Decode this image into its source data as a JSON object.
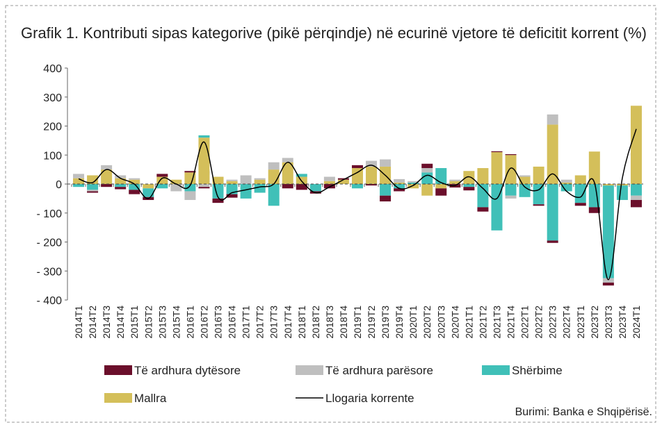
{
  "chart_data": {
    "type": "bar",
    "title": "Grafik 1. Kontributi sipas kategorive (pikë përqindje) në ecurinë vjetore të deficitit korrent (%)",
    "source": "Burimi: Banka e Shqipërisë.",
    "categories": [
      "2014T1",
      "2014T2",
      "2014T3",
      "2014T4",
      "2015T1",
      "2015T2",
      "2015T3",
      "2015T4",
      "2016T1",
      "2016T2",
      "2016T3",
      "2016T4",
      "2017T1",
      "2017T2",
      "2017T3",
      "2017T4",
      "2018T1",
      "2018T2",
      "2018T3",
      "2018T4",
      "2019T1",
      "2019T2",
      "2019T3",
      "2019T4",
      "2020T1",
      "2020T2",
      "2020T3",
      "2020T4",
      "2021T1",
      "2021T2",
      "2021T3",
      "2021T4",
      "2022T1",
      "2022T2",
      "2022T3",
      "2022T4",
      "2023T1",
      "2023T2",
      "2023T3",
      "2023T4",
      "2024T1"
    ],
    "series": [
      {
        "name": "Të ardhura dytësore",
        "color": "#6b0f2b",
        "values": [
          0,
          -5,
          -10,
          -8,
          -15,
          -10,
          10,
          0,
          5,
          -5,
          -15,
          -12,
          0,
          0,
          0,
          -15,
          -20,
          -8,
          -15,
          5,
          10,
          -5,
          -20,
          -10,
          0,
          15,
          -25,
          -12,
          -12,
          -15,
          3,
          3,
          0,
          -5,
          -8,
          0,
          -10,
          -20,
          -10,
          0,
          -25
        ]
      },
      {
        "name": "Të ardhura parësore",
        "color": "#bfbfbf",
        "values": [
          15,
          -5,
          15,
          10,
          5,
          0,
          0,
          -25,
          -30,
          -10,
          0,
          5,
          30,
          5,
          25,
          15,
          0,
          0,
          15,
          0,
          0,
          20,
          25,
          12,
          5,
          15,
          0,
          5,
          0,
          0,
          0,
          -10,
          5,
          0,
          35,
          10,
          0,
          0,
          -15,
          0,
          -15
        ]
      },
      {
        "name": "Shërbime",
        "color": "#40c0b8",
        "values": [
          -10,
          -20,
          0,
          -10,
          -20,
          -30,
          -15,
          0,
          -25,
          8,
          -50,
          -35,
          -50,
          -30,
          -75,
          0,
          10,
          -25,
          0,
          0,
          -15,
          0,
          -40,
          -15,
          5,
          40,
          55,
          0,
          -10,
          -80,
          -160,
          -40,
          -45,
          -70,
          -195,
          -25,
          -65,
          -80,
          -320,
          -50,
          -40
        ]
      },
      {
        "name": "Mallra",
        "color": "#d4bf5a",
        "values": [
          20,
          30,
          50,
          20,
          15,
          -15,
          25,
          15,
          40,
          160,
          25,
          10,
          0,
          15,
          50,
          75,
          25,
          0,
          10,
          15,
          55,
          60,
          60,
          5,
          -15,
          -40,
          -15,
          10,
          45,
          55,
          110,
          100,
          25,
          60,
          205,
          5,
          30,
          112,
          -5,
          -5,
          270
        ]
      },
      {
        "name": "Llogaria korrente",
        "color": "#000000",
        "kind": "line",
        "values": [
          18,
          5,
          50,
          20,
          0,
          -50,
          20,
          0,
          -5,
          145,
          -45,
          -30,
          -20,
          -10,
          0,
          75,
          10,
          -30,
          -10,
          15,
          40,
          65,
          30,
          -15,
          -5,
          30,
          5,
          -5,
          25,
          -15,
          -50,
          55,
          -10,
          -20,
          35,
          -25,
          -45,
          5,
          -330,
          20,
          190
        ]
      }
    ],
    "ylim": [
      -400,
      400
    ],
    "yticks": [
      400,
      300,
      200,
      100,
      0,
      {
        "value": -100,
        "label": "- 100"
      },
      {
        "value": -200,
        "label": "- 200"
      },
      {
        "value": -300,
        "label": "- 300"
      },
      {
        "value": -400,
        "label": "- 400"
      }
    ]
  }
}
